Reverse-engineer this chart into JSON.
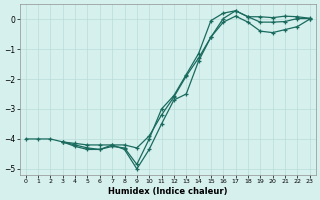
{
  "xlabel": "Humidex (Indice chaleur)",
  "bg_color": "#d6f0ee",
  "grid_color": "#b8dcd8",
  "line_color": "#1a6b5e",
  "xlim": [
    -0.5,
    23.5
  ],
  "ylim": [
    -5.2,
    0.5
  ],
  "yticks": [
    0,
    -1,
    -2,
    -3,
    -4,
    -5
  ],
  "xticks": [
    0,
    1,
    2,
    3,
    4,
    5,
    6,
    7,
    8,
    9,
    10,
    11,
    12,
    13,
    14,
    15,
    16,
    17,
    18,
    19,
    20,
    21,
    22,
    23
  ],
  "line1_x": [
    0,
    1,
    2,
    3,
    4,
    5,
    6,
    7,
    8,
    9,
    10,
    11,
    12,
    13,
    14,
    15,
    16,
    17,
    18,
    19,
    20,
    21,
    22,
    23
  ],
  "line1_y": [
    -4.0,
    -4.0,
    -4.0,
    -4.1,
    -4.15,
    -4.2,
    -4.2,
    -4.2,
    -4.2,
    -4.3,
    -3.9,
    -3.2,
    -2.6,
    -1.9,
    -1.3,
    -0.6,
    -0.1,
    0.1,
    -0.1,
    -0.4,
    -0.45,
    -0.35,
    -0.25,
    0.0
  ],
  "line2_x": [
    3,
    4,
    5,
    6,
    7,
    8,
    9,
    10,
    11,
    12,
    13,
    14,
    15,
    16,
    17,
    18,
    19,
    20,
    21,
    22,
    23
  ],
  "line2_y": [
    -4.1,
    -4.2,
    -4.3,
    -4.35,
    -4.25,
    -4.3,
    -4.85,
    -4.0,
    -3.0,
    -2.55,
    -1.85,
    -1.15,
    -0.05,
    0.2,
    0.28,
    0.08,
    0.08,
    0.05,
    0.1,
    0.08,
    0.03
  ],
  "line3_x": [
    3,
    4,
    5,
    6,
    7,
    8,
    9,
    10,
    11,
    12,
    13,
    14,
    15,
    16,
    17,
    18,
    19,
    20,
    21,
    22,
    23
  ],
  "line3_y": [
    -4.1,
    -4.25,
    -4.35,
    -4.35,
    -4.2,
    -4.35,
    -5.0,
    -4.35,
    -3.5,
    -2.7,
    -2.5,
    -1.4,
    -0.6,
    0.02,
    0.28,
    0.08,
    -0.1,
    -0.1,
    -0.08,
    0.02,
    0.02
  ]
}
